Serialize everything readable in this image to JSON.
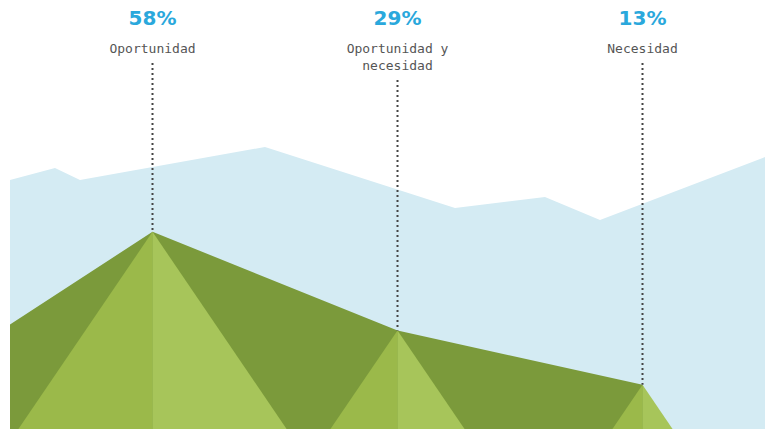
{
  "chart_data": {
    "type": "mountain",
    "categories": [
      "Oportunidad",
      "Oportunidad y necesidad",
      "Necesidad"
    ],
    "values": [
      58,
      29,
      13
    ],
    "value_labels": [
      "58%",
      "29%",
      "13%"
    ],
    "ylim": [
      0,
      100
    ],
    "data_labels": true,
    "tick_labels": false
  }
}
